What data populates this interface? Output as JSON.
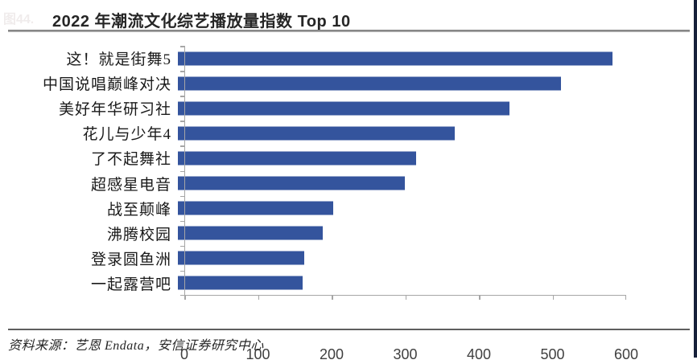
{
  "figure_label": "图44.",
  "header": {
    "title": "2022 年潮流文化综艺播放量指数 Top 10"
  },
  "footer": {
    "source_note": "资料来源：艺恩 Endata，安信证券研究中心"
  },
  "colors": {
    "bar": "#34549d",
    "axis_line": "#a6a6a6",
    "tick_label": "#3f3f3f",
    "title_text": "#262626",
    "separator": "#5e5e5e",
    "right_edge_strip": "#16203a"
  },
  "chart_data": {
    "type": "bar",
    "orientation": "horizontal",
    "title": "2022 年潮流文化综艺播放量指数 Top 10",
    "categories": [
      "这！就是街舞5",
      "中国说唱巅峰对决",
      "美好年华研习社",
      "花儿与少年4",
      "了不起舞社",
      "超感星电音",
      "战至颠峰",
      "沸腾校园",
      "登录圆鱼洲",
      "一起露营吧"
    ],
    "values": [
      590,
      520,
      450,
      376,
      323,
      308,
      211,
      197,
      172,
      169
    ],
    "xlabel": "",
    "ylabel": "",
    "xlim": [
      0,
      600
    ],
    "x_tick_labels": [
      "0",
      "100",
      "200",
      "300",
      "400",
      "500",
      "600"
    ],
    "grid": false,
    "legend": false,
    "source": "资料来源：艺恩 Endata，安信证券研究中心"
  }
}
